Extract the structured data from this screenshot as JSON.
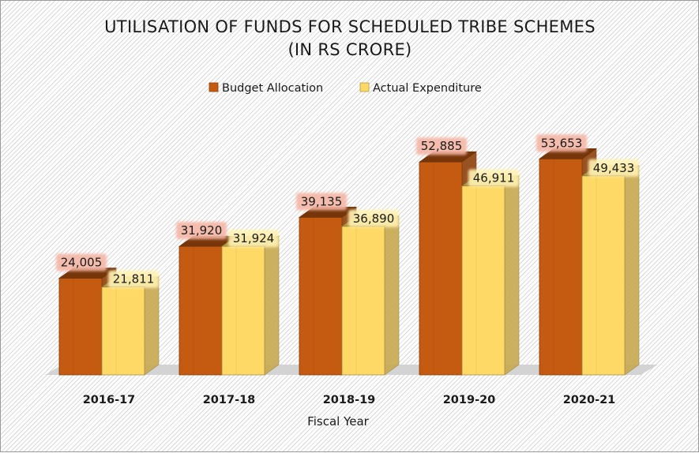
{
  "chart_data": {
    "type": "bar",
    "title": "UTILISATION OF FUNDS FOR SCHEDULED TRIBE SCHEMES",
    "subtitle": "(IN RS CRORE)",
    "xlabel": "Fiscal Year",
    "ylabel": "",
    "categories": [
      "2016-17",
      "2017-18",
      "2018-19",
      "2019-20",
      "2020-21"
    ],
    "series": [
      {
        "name": "Budget Allocation",
        "values": [
          24005,
          31920,
          39135,
          52885,
          53653
        ],
        "labels": [
          "24,005",
          "31,920",
          "39,135",
          "52,885",
          "53,653"
        ],
        "color": "#c55a11",
        "label_bg": "#f4b6a6"
      },
      {
        "name": "Actual Expenditure",
        "values": [
          21811,
          31924,
          36890,
          46911,
          49433
        ],
        "labels": [
          "21,811",
          "31,924",
          "36,890",
          "46,911",
          "49,433"
        ],
        "color": "#ffd966",
        "label_bg": "#fff2b3"
      }
    ],
    "ylim": [
      0,
      60000
    ],
    "grid": false,
    "legend": "top-center",
    "style": "3d-clustered-column"
  }
}
